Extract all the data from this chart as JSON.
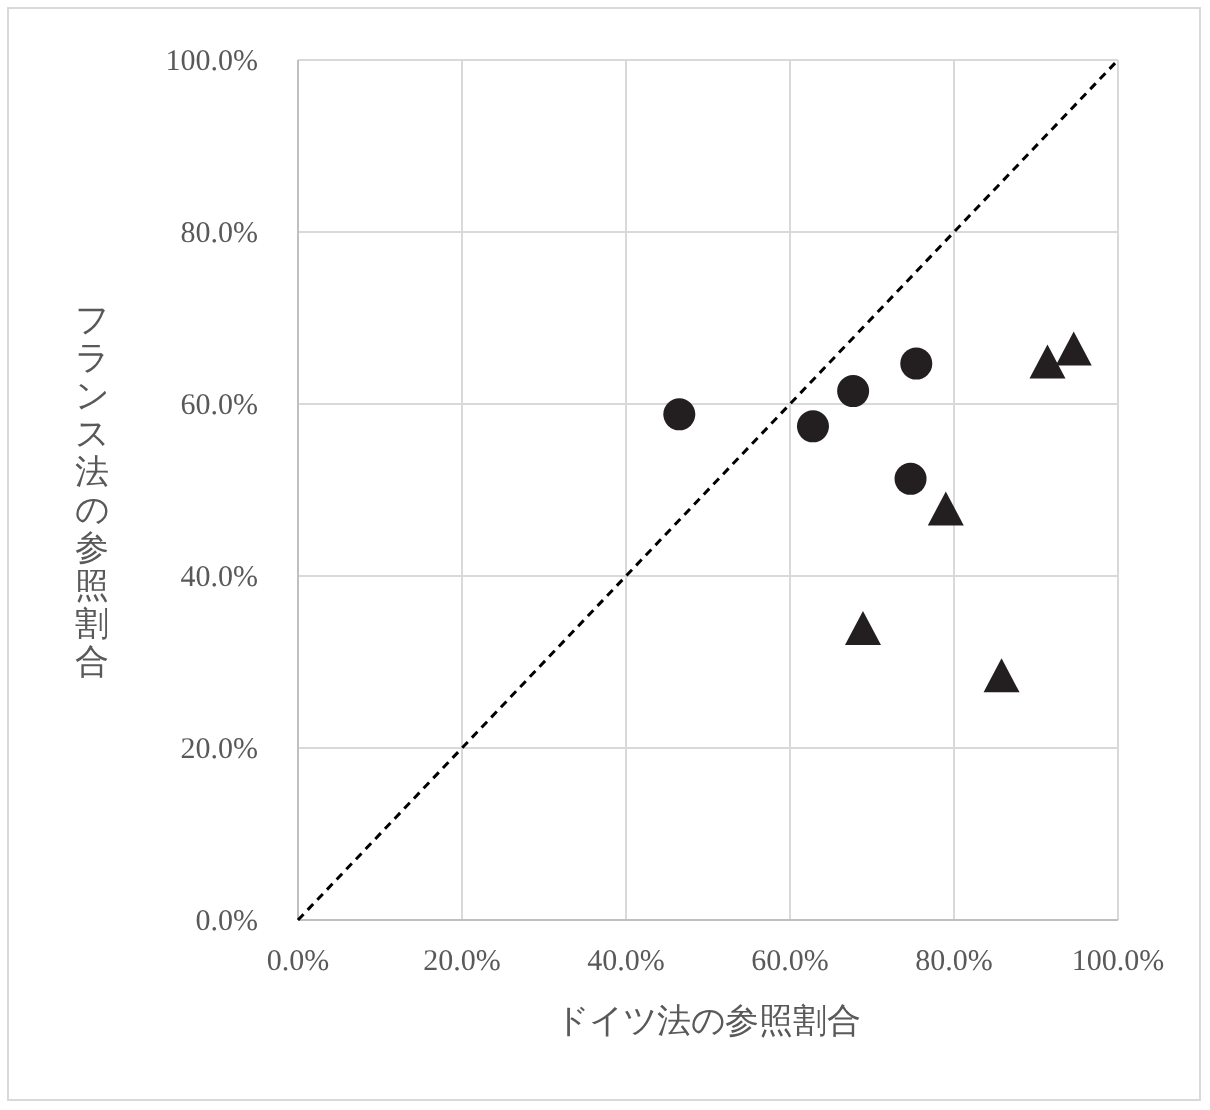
{
  "chart_data": {
    "type": "scatter",
    "xlabel": "ドイツ法の参照割合",
    "ylabel": "フランス法の参照割合",
    "xlim": [
      0,
      100
    ],
    "ylim": [
      0,
      100
    ],
    "xticks": [
      {
        "value": 0,
        "label": "0.0%"
      },
      {
        "value": 20,
        "label": "20.0%"
      },
      {
        "value": 40,
        "label": "40.0%"
      },
      {
        "value": 60,
        "label": "60.0%"
      },
      {
        "value": 80,
        "label": "80.0%"
      },
      {
        "value": 100,
        "label": "100.0%"
      }
    ],
    "yticks": [
      {
        "value": 0,
        "label": "0.0%"
      },
      {
        "value": 20,
        "label": "20.0%"
      },
      {
        "value": 40,
        "label": "40.0%"
      },
      {
        "value": 60,
        "label": "60.0%"
      },
      {
        "value": 80,
        "label": "80.0%"
      },
      {
        "value": 100,
        "label": "100.0%"
      }
    ],
    "grid": true,
    "series": [
      {
        "type": "scatter",
        "marker": "circle",
        "color": "#231f20",
        "x": [
          46.5,
          62.8,
          67.7,
          75.4,
          74.7
        ],
        "values": [
          58.8,
          57.4,
          61.5,
          64.7,
          51.3
        ]
      },
      {
        "type": "scatter",
        "marker": "triangle",
        "color": "#231f20",
        "x": [
          91.4,
          94.6,
          79.0,
          68.9,
          85.8
        ],
        "values": [
          64.6,
          66.1,
          47.5,
          33.6,
          28.1
        ]
      },
      {
        "type": "line",
        "marker": "none",
        "line_style": "dashed",
        "color": "#000000",
        "x": [
          0,
          100
        ],
        "values": [
          0,
          100
        ]
      }
    ]
  }
}
